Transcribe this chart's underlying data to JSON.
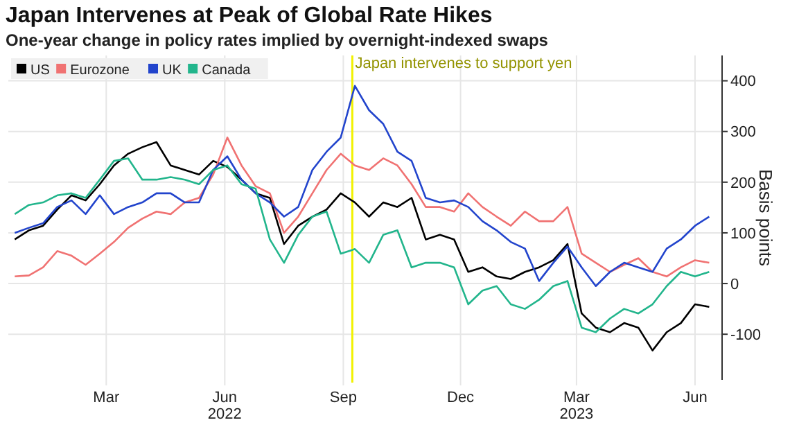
{
  "chart_data": {
    "type": "line",
    "title": "Japan Intervenes at Peak of Global Rate Hikes",
    "subtitle": "One-year change in policy rates implied by overnight-indexed swaps",
    "ylabel": "Basis points",
    "x": [
      "2022-01-03",
      "2022-01-14",
      "2022-01-25",
      "2022-02-05",
      "2022-02-16",
      "2022-02-27",
      "2022-03-10",
      "2022-03-21",
      "2022-04-01",
      "2022-04-12",
      "2022-04-23",
      "2022-05-04",
      "2022-05-15",
      "2022-05-26",
      "2022-06-06",
      "2022-06-17",
      "2022-06-28",
      "2022-07-09",
      "2022-07-20",
      "2022-07-31",
      "2022-08-11",
      "2022-08-22",
      "2022-09-02",
      "2022-09-13",
      "2022-09-24",
      "2022-10-05",
      "2022-10-16",
      "2022-10-27",
      "2022-11-07",
      "2022-11-18",
      "2022-11-29",
      "2022-12-10",
      "2022-12-21",
      "2023-01-01",
      "2023-01-12",
      "2023-01-23",
      "2023-02-03",
      "2023-02-14",
      "2023-02-25",
      "2023-03-08",
      "2023-03-19",
      "2023-03-30",
      "2023-04-10",
      "2023-04-21",
      "2023-05-02",
      "2023-05-13",
      "2023-05-24",
      "2023-06-04",
      "2023-06-15",
      "2023-06-26"
    ],
    "series": [
      {
        "name": "US",
        "color": "#000000",
        "values": [
          87,
          105,
          114,
          146,
          174,
          164,
          196,
          233,
          256,
          269,
          279,
          233,
          224,
          215,
          242,
          230,
          205,
          178,
          169,
          78,
          114,
          132,
          146,
          178,
          160,
          132,
          160,
          151,
          169,
          87,
          96,
          87,
          23,
          32,
          14,
          9,
          23,
          32,
          46,
          78,
          -59,
          -87,
          -96,
          -78,
          -87,
          -132,
          -96,
          -78,
          -41,
          -46
        ]
      },
      {
        "name": "Eurozone",
        "color": "#f07272",
        "values": [
          14,
          16,
          32,
          64,
          55,
          37,
          59,
          82,
          110,
          128,
          142,
          137,
          160,
          169,
          215,
          288,
          233,
          192,
          178,
          100,
          132,
          178,
          224,
          256,
          233,
          224,
          247,
          233,
          196,
          151,
          151,
          142,
          178,
          151,
          132,
          114,
          142,
          123,
          123,
          151,
          59,
          41,
          23,
          37,
          50,
          23,
          14,
          32,
          46,
          41
        ]
      },
      {
        "name": "UK",
        "color": "#2244cc",
        "values": [
          100,
          110,
          119,
          151,
          164,
          137,
          174,
          137,
          151,
          160,
          178,
          178,
          160,
          160,
          224,
          251,
          205,
          178,
          160,
          132,
          151,
          224,
          260,
          288,
          390,
          342,
          315,
          260,
          242,
          169,
          160,
          164,
          151,
          123,
          105,
          82,
          69,
          5,
          41,
          73,
          32,
          -5,
          23,
          41,
          32,
          23,
          69,
          87,
          114,
          132
        ]
      },
      {
        "name": "Canada",
        "color": "#22b58c",
        "values": [
          137,
          155,
          160,
          174,
          178,
          169,
          205,
          242,
          247,
          205,
          205,
          210,
          205,
          196,
          224,
          233,
          196,
          187,
          87,
          41,
          96,
          132,
          142,
          59,
          68,
          41,
          96,
          105,
          32,
          41,
          41,
          32,
          -41,
          -14,
          -5,
          -41,
          -50,
          -32,
          -5,
          5,
          -87,
          -96,
          -69,
          -50,
          -59,
          -41,
          -5,
          23,
          14,
          23
        ]
      }
    ],
    "xlim": [
      "2021-12-29",
      "2023-07-06"
    ],
    "xticks": [
      {
        "value": "2022-03-15",
        "label": "Mar"
      },
      {
        "value": "2022-06-15",
        "label": "Jun\n2022"
      },
      {
        "value": "2022-09-15",
        "label": "Sep"
      },
      {
        "value": "2022-12-15",
        "label": "Dec"
      },
      {
        "value": "2023-03-15",
        "label": "Mar\n2023"
      },
      {
        "value": "2023-06-15",
        "label": "Jun"
      }
    ],
    "ylim": [
      -190,
      450
    ],
    "yticks": [
      -100,
      0,
      100,
      200,
      300,
      400
    ],
    "ref_lines": [
      {
        "axis": "x",
        "value": "2022-09-22",
        "label": "Japan intervenes to support yen",
        "color": "#f2f200"
      }
    ],
    "grid": true,
    "legend": "top left",
    "line_style": "solid",
    "marker": "none"
  }
}
